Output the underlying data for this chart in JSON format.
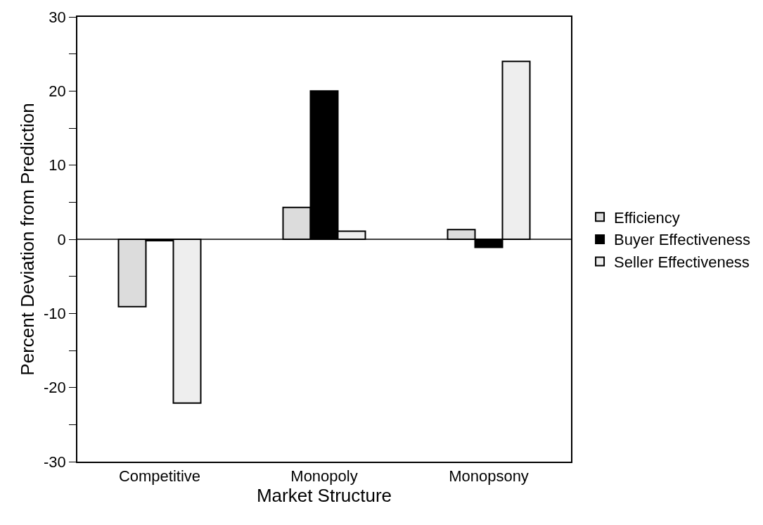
{
  "chart_data": {
    "type": "bar",
    "xlabel": "Market Structure",
    "ylabel": "Percent Deviation from Prediction",
    "categories": [
      "Competitive",
      "Monopoly",
      "Monopsony"
    ],
    "series": [
      {
        "name": "Efficiency",
        "color": "#dcdcdc",
        "values": [
          -9.1,
          4.3,
          1.3
        ]
      },
      {
        "name": "Buyer Effectiveness",
        "color": "#000000",
        "values": [
          -0.2,
          20.0,
          -1.1
        ]
      },
      {
        "name": "Seller Effectiveness",
        "color": "#eeeeee",
        "values": [
          -22.1,
          1.1,
          24.0
        ]
      }
    ],
    "ylim": [
      -30,
      30
    ],
    "yticks": [
      -30,
      {
        "value": -25,
        "label": null
      },
      -20,
      {
        "value": -15,
        "label": null
      },
      -10,
      {
        "value": -5,
        "label": null
      },
      0,
      {
        "value": 5,
        "label": null
      },
      10,
      {
        "value": 15,
        "label": null
      },
      20,
      {
        "value": 25,
        "label": null
      },
      30
    ],
    "ref_lines": [
      {
        "axis": "y",
        "value": 0,
        "color": "#000000"
      }
    ],
    "grid": false,
    "legend": "right"
  }
}
